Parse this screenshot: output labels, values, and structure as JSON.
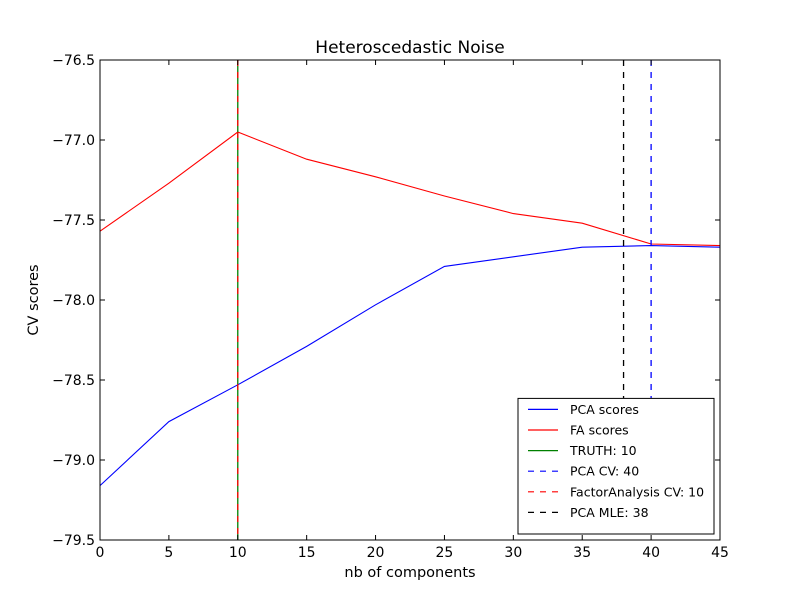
{
  "chart_data": {
    "type": "line",
    "title": "Heteroscedastic Noise",
    "xlabel": "nb of components",
    "ylabel": "CV scores",
    "xlim": [
      0,
      45
    ],
    "ylim": [
      -79.5,
      -76.5
    ],
    "xticks": [
      "0",
      "5",
      "10",
      "15",
      "20",
      "25",
      "30",
      "35",
      "40",
      "45"
    ],
    "yticks": [
      "-76.5",
      "-77.0",
      "-77.5",
      "-78.0",
      "-78.5",
      "-79.0",
      "-79.5"
    ],
    "grid": false,
    "legend_position": "lower-right",
    "series": [
      {
        "name": "PCA scores",
        "color": "#0000ff",
        "style": "solid",
        "x": [
          0,
          5,
          10,
          15,
          20,
          25,
          30,
          35,
          40,
          45
        ],
        "y": [
          -79.16,
          -78.76,
          -78.53,
          -78.29,
          -78.03,
          -77.79,
          -77.73,
          -77.67,
          -77.66,
          -77.67
        ]
      },
      {
        "name": "FA scores",
        "color": "#ff0000",
        "style": "solid",
        "x": [
          0,
          5,
          10,
          15,
          20,
          25,
          30,
          35,
          40,
          45
        ],
        "y": [
          -77.57,
          -77.27,
          -76.95,
          -77.12,
          -77.23,
          -77.35,
          -77.46,
          -77.52,
          -77.65,
          -77.66
        ]
      }
    ],
    "vlines": [
      {
        "name": "TRUTH: 10",
        "x": 10,
        "color": "#008000",
        "style": "solid"
      },
      {
        "name": "PCA CV: 40",
        "x": 40,
        "color": "#0000ff",
        "style": "dashed"
      },
      {
        "name": "FactorAnalysis CV: 10",
        "x": 10,
        "color": "#ff0000",
        "style": "dashed"
      },
      {
        "name": "PCA MLE: 38",
        "x": 38,
        "color": "#000000",
        "style": "dashed"
      }
    ],
    "legend": [
      {
        "label": "PCA scores",
        "color": "#0000ff",
        "style": "solid"
      },
      {
        "label": "FA scores",
        "color": "#ff0000",
        "style": "solid"
      },
      {
        "label": "TRUTH: 10",
        "color": "#008000",
        "style": "solid"
      },
      {
        "label": "PCA CV: 40",
        "color": "#0000ff",
        "style": "dashed"
      },
      {
        "label": "FactorAnalysis CV: 10",
        "color": "#ff0000",
        "style": "dashed"
      },
      {
        "label": "PCA MLE: 38",
        "color": "#000000",
        "style": "dashed"
      }
    ]
  }
}
